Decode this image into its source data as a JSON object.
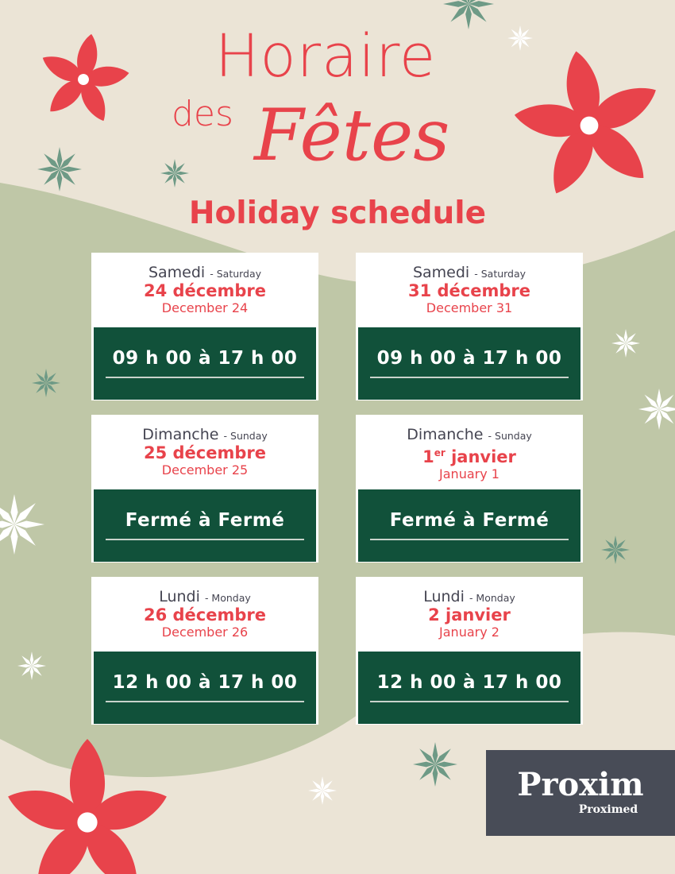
{
  "title": {
    "line1": "Horaire",
    "line2": "des",
    "line3": "Fêtes",
    "subtitle": "Holiday schedule"
  },
  "cards": [
    {
      "day": "Samedi",
      "day_en": "- Saturday",
      "date": "24 décembre",
      "date_en": "December 24",
      "hours": "09 h 00 à 17 h 00"
    },
    {
      "day": "Samedi",
      "day_en": "- Saturday",
      "date": "31 décembre",
      "date_en": "December 31",
      "hours": "09 h 00 à 17 h 00"
    },
    {
      "day": "Dimanche",
      "day_en": "- Sunday",
      "date": "25 décembre",
      "date_en": "December 25",
      "hours": "Fermé à Fermé"
    },
    {
      "day": "Dimanche",
      "day_en": "- Sunday",
      "date_num": "1",
      "date_sup": "er",
      "date_rest": " janvier",
      "date_en": "January 1",
      "hours": "Fermé à Fermé"
    },
    {
      "day": "Lundi",
      "day_en": "- Monday",
      "date": "26 décembre",
      "date_en": "December 26",
      "hours": "12 h 00 à 17 h 00"
    },
    {
      "day": "Lundi",
      "day_en": "- Monday",
      "date": "2 janvier",
      "date_en": "January 2",
      "hours": "12 h 00 à 17 h 00"
    }
  ],
  "logo": {
    "brand": "Proxim",
    "sub": "Proximed"
  },
  "colors": {
    "red": "#e8434b",
    "green": "#11513a",
    "beige": "#ebe4d6",
    "sage": "#bfc7a7",
    "logo_bg": "#484c57",
    "lime": "#9cc93b"
  }
}
